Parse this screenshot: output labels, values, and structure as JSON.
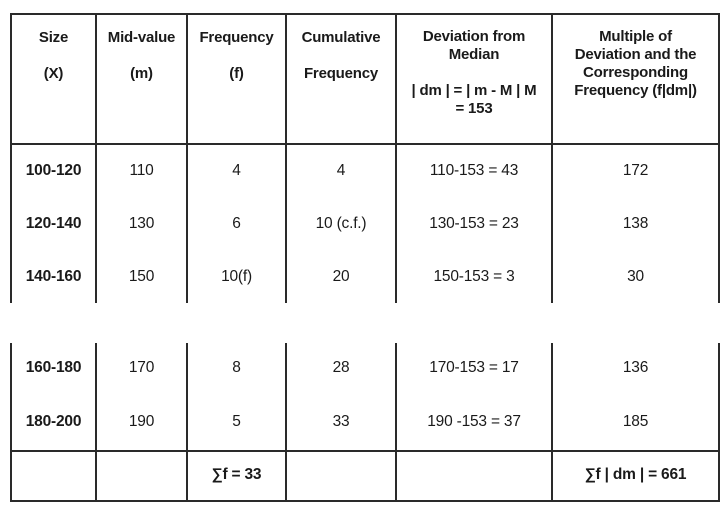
{
  "headers": {
    "size": [
      "Size",
      "(X)"
    ],
    "mid": [
      "Mid-value",
      "(m)"
    ],
    "freq": [
      "Frequency",
      "(f)"
    ],
    "cum": [
      "Cumulative",
      "Frequency"
    ],
    "dev": [
      "Deviation from",
      "Median",
      "| dm | = | m - M | M",
      "= 153"
    ],
    "mult": [
      "Multiple of",
      "Deviation and the",
      "Corresponding",
      "Frequency (f|dm|)"
    ]
  },
  "rows": [
    {
      "size": "100-120",
      "mid": "110",
      "freq": "4",
      "cum": "4",
      "dev": "110-153 = 43",
      "mult": "172"
    },
    {
      "size": "120-140",
      "mid": "130",
      "freq": "6",
      "cum": "10 (c.f.)",
      "dev": "130-153 = 23",
      "mult": "138"
    },
    {
      "size": "140-160",
      "mid": "150",
      "freq": "10(f)",
      "cum": "20",
      "dev": "150-153 = 3",
      "mult": "30"
    },
    {
      "size": "160-180",
      "mid": "170",
      "freq": "8",
      "cum": "28",
      "dev": "170-153 = 17",
      "mult": "136"
    },
    {
      "size": "180-200",
      "mid": "190",
      "freq": "5",
      "cum": "33",
      "dev": "190 -153 = 37",
      "mult": "185"
    }
  ],
  "totals": {
    "freq": "∑f = 33",
    "mult": "∑f | dm | = 661"
  }
}
